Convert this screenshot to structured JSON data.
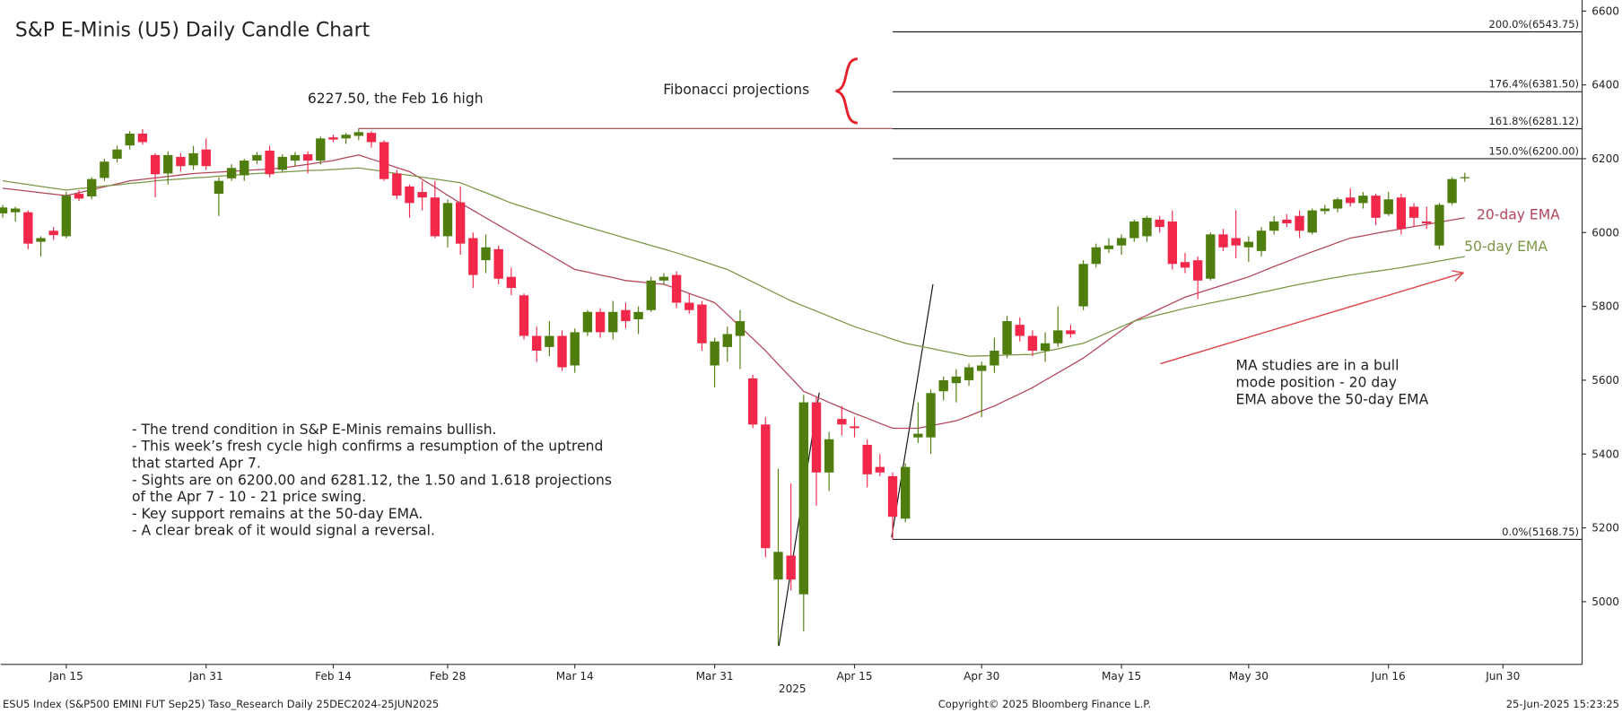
{
  "chart_data": {
    "type": "candlestick",
    "title": "S&P E-Minis (U5) Daily Candle Chart",
    "categories": [
      null,
      null,
      null,
      null,
      null,
      "Jan 15",
      null,
      null,
      null,
      null,
      null,
      null,
      null,
      null,
      null,
      null,
      "Jan 31",
      null,
      null,
      null,
      null,
      null,
      null,
      null,
      null,
      null,
      "Feb 14",
      null,
      null,
      null,
      null,
      null,
      null,
      null,
      null,
      "Feb 28",
      null,
      null,
      null,
      null,
      null,
      null,
      null,
      null,
      null,
      "Mar 14",
      null,
      null,
      null,
      null,
      null,
      null,
      null,
      null,
      null,
      null,
      "Mar 31",
      null,
      null,
      null,
      null,
      null,
      null,
      null,
      null,
      null,
      null,
      "Apr 15",
      null,
      null,
      null,
      null,
      null,
      null,
      null,
      null,
      null,
      "Apr 30",
      null,
      null,
      null,
      null,
      null,
      null,
      null,
      null,
      null,
      null,
      "May 15",
      null,
      null,
      null,
      null,
      null,
      null,
      null,
      null,
      null,
      "May 30",
      null,
      null,
      null,
      null,
      null,
      null,
      null,
      null,
      null,
      null,
      "Jun 16",
      null,
      null,
      null,
      null,
      null,
      null,
      null,
      null,
      "Jun 30"
    ],
    "open": [
      6052,
      6055,
      6055,
      5975,
      6005,
      5990,
      6105,
      6098,
      6148,
      6200,
      6236,
      6268,
      6210,
      6160,
      6205,
      6182,
      6225,
      6105,
      6147,
      6155,
      6195,
      6222,
      6170,
      6195,
      6212,
      6195,
      6258,
      6255,
      6262,
      6270,
      6245,
      6160,
      6125,
      6110,
      6095,
      5990,
      6082,
      5985,
      5925,
      5955,
      5880,
      5830,
      5720,
      5690,
      5720,
      5640,
      5730,
      5785,
      5730,
      5790,
      5765,
      5790,
      5870,
      5885,
      5810,
      5805,
      5640,
      5690,
      5720,
      5605,
      5480,
      5060,
      5125,
      5020,
      5540,
      5350,
      5495,
      5475,
      5425,
      5365,
      5340,
      5225,
      5445,
      5445,
      5570,
      5592,
      5600,
      5625,
      5640,
      5670,
      5750,
      5720,
      5680,
      5700,
      5735,
      5800,
      5915,
      5955,
      5965,
      5985,
      5990,
      6035,
      6030,
      5920,
      5925,
      5875,
      5995,
      5985,
      5960,
      5950,
      6005,
      6035,
      6045,
      6000,
      6058,
      6065,
      6095,
      6080,
      6100,
      6050,
      6095,
      6070,
      6030,
      5965,
      6080,
      6147,
      null,
      null,
      null
    ],
    "high": [
      6075,
      6070,
      6060,
      5990,
      6015,
      6110,
      6115,
      6150,
      6200,
      6235,
      6275,
      6280,
      6215,
      6220,
      6215,
      6235,
      6255,
      6150,
      6185,
      6200,
      6218,
      6235,
      6212,
      6218,
      6220,
      6260,
      6265,
      6270,
      6282,
      6275,
      6250,
      6170,
      6130,
      6140,
      6140,
      6090,
      6125,
      6000,
      5995,
      5965,
      5905,
      5835,
      5745,
      5760,
      5735,
      5740,
      5790,
      5795,
      5815,
      5810,
      5800,
      5880,
      5890,
      5895,
      5835,
      5815,
      5715,
      5745,
      5790,
      5615,
      5500,
      5360,
      5320,
      5560,
      5555,
      5460,
      5530,
      5500,
      5440,
      5400,
      5350,
      5375,
      5540,
      5575,
      5610,
      5630,
      5645,
      5650,
      5715,
      5775,
      5770,
      5735,
      5730,
      5800,
      5750,
      5925,
      5970,
      5985,
      5995,
      6035,
      6045,
      6045,
      6060,
      5945,
      5935,
      6000,
      6010,
      6060,
      5990,
      6015,
      6045,
      6050,
      6060,
      6065,
      6075,
      6095,
      6120,
      6110,
      6105,
      6110,
      6105,
      6080,
      6070,
      6080,
      6150,
      6162,
      null,
      null,
      null
    ],
    "low": [
      6040,
      6030,
      5955,
      5935,
      5980,
      5985,
      6085,
      6090,
      6140,
      6190,
      6225,
      6238,
      6095,
      6130,
      6165,
      6170,
      6170,
      6045,
      6140,
      6140,
      6185,
      6150,
      6165,
      6180,
      6160,
      6185,
      6245,
      6240,
      6250,
      6230,
      6140,
      6090,
      6040,
      6060,
      5985,
      5960,
      5940,
      5850,
      5890,
      5860,
      5830,
      5710,
      5650,
      5665,
      5625,
      5620,
      5720,
      5715,
      5710,
      5740,
      5725,
      5785,
      5860,
      5795,
      5780,
      5680,
      5580,
      5650,
      5630,
      5470,
      5120,
      4880,
      5030,
      4920,
      5260,
      5300,
      5450,
      5445,
      5310,
      5340,
      5169,
      5215,
      5430,
      5400,
      5545,
      5540,
      5585,
      5500,
      5620,
      5660,
      5705,
      5665,
      5650,
      5690,
      5715,
      5790,
      5905,
      5945,
      5940,
      5975,
      5975,
      6000,
      5900,
      5890,
      5820,
      5870,
      5950,
      5930,
      5920,
      5935,
      5995,
      6015,
      5985,
      5995,
      6050,
      6055,
      6070,
      6065,
      6020,
      6045,
      5995,
      6015,
      6010,
      5955,
      6075,
      6138,
      null,
      null,
      null
    ],
    "close": [
      6068,
      6065,
      5970,
      5985,
      5993,
      6100,
      6092,
      6145,
      6192,
      6225,
      6268,
      6245,
      6158,
      6210,
      6180,
      6215,
      6180,
      6140,
      6175,
      6195,
      6210,
      6158,
      6205,
      6210,
      6195,
      6255,
      6252,
      6265,
      6272,
      6245,
      6145,
      6100,
      6080,
      6095,
      5990,
      6080,
      5970,
      5885,
      5960,
      5875,
      5850,
      5720,
      5680,
      5720,
      5635,
      5730,
      5785,
      5730,
      5785,
      5760,
      5785,
      5870,
      5880,
      5810,
      5790,
      5700,
      5705,
      5725,
      5760,
      5480,
      5145,
      5135,
      5060,
      5540,
      5350,
      5440,
      5480,
      5470,
      5345,
      5350,
      5230,
      5365,
      5455,
      5565,
      5600,
      5610,
      5635,
      5640,
      5680,
      5760,
      5720,
      5680,
      5700,
      5735,
      5725,
      5915,
      5960,
      5965,
      5985,
      6030,
      6040,
      6015,
      5915,
      5905,
      5870,
      5995,
      5960,
      5965,
      5975,
      6005,
      6030,
      6025,
      6005,
      6060,
      6065,
      6090,
      6080,
      6100,
      6040,
      6090,
      6010,
      6040,
      6025,
      6075,
      6145,
      6150,
      null,
      null,
      null
    ],
    "up_color": "#4f7d0e",
    "down_color": "#f2284a",
    "series": [
      {
        "name": "20-day EMA",
        "color": "#b2465a",
        "values": [
          6120,
          6116,
          6112,
          6108,
          6104,
          6100,
          6108,
          6116,
          6124,
          6132,
          6140,
          6144,
          6148,
          6152,
          6156,
          6160,
          6162,
          6164,
          6166,
          6168,
          6170,
          6172,
          6175,
          6180,
          6185,
          6190,
          6195,
          6203,
          6210,
          6199,
          6188,
          6176,
          6165,
          6144,
          6123,
          6101,
          6080,
          6060,
          6040,
          6020,
          6000,
          5980,
          5960,
          5940,
          5920,
          5900,
          5893,
          5885,
          5878,
          5870,
          5867,
          5863,
          5860,
          5848,
          5835,
          5823,
          5810,
          5778,
          5745,
          5713,
          5680,
          5643,
          5607,
          5570,
          5555,
          5540,
          5525,
          5510,
          5497,
          5483,
          5470,
          5470,
          5470,
          5477,
          5483,
          5490,
          5503,
          5517,
          5530,
          5547,
          5563,
          5580,
          5600,
          5620,
          5640,
          5660,
          5685,
          5710,
          5735,
          5760,
          5776,
          5793,
          5809,
          5825,
          5836,
          5847,
          5858,
          5869,
          5880,
          5894,
          5908,
          5921,
          5935,
          5948,
          5960,
          5973,
          5985,
          5991,
          5998,
          6004,
          6010,
          6016,
          6022,
          6028,
          6034,
          6040,
          null,
          null,
          null
        ]
      },
      {
        "name": "50-day EMA",
        "color": "#7a9646",
        "values": [
          6140,
          6135,
          6130,
          6125,
          6120,
          6115,
          6119,
          6122,
          6126,
          6129,
          6133,
          6136,
          6140,
          6143,
          6145,
          6148,
          6150,
          6153,
          6155,
          6158,
          6160,
          6162,
          6164,
          6166,
          6168,
          6169,
          6171,
          6173,
          6175,
          6170,
          6165,
          6160,
          6155,
          6150,
          6145,
          6140,
          6135,
          6121,
          6108,
          6094,
          6080,
          6069,
          6058,
          6047,
          6036,
          6025,
          6015,
          6005,
          5995,
          5985,
          5975,
          5965,
          5955,
          5945,
          5934,
          5923,
          5911,
          5900,
          5883,
          5866,
          5849,
          5832,
          5815,
          5801,
          5787,
          5773,
          5759,
          5745,
          5734,
          5723,
          5711,
          5700,
          5693,
          5686,
          5679,
          5672,
          5665,
          5666,
          5667,
          5668,
          5669,
          5670,
          5678,
          5685,
          5693,
          5700,
          5715,
          5730,
          5745,
          5760,
          5769,
          5778,
          5786,
          5795,
          5802,
          5809,
          5816,
          5823,
          5830,
          5838,
          5845,
          5853,
          5860,
          5866,
          5873,
          5879,
          5885,
          5890,
          5895,
          5900,
          5905,
          5911,
          5917,
          5923,
          5929,
          5935,
          null,
          null,
          null
        ]
      }
    ],
    "ylim": [
      4830,
      6630
    ],
    "yticks": [
      5000,
      5200,
      5400,
      5600,
      5800,
      6000,
      6200,
      6400,
      6600
    ],
    "x_sublabel": "2025",
    "fib_levels": [
      {
        "label": "200.0%(6543.75)",
        "value": 6543.75
      },
      {
        "label": "176.4%(6381.50)",
        "value": 6381.5
      },
      {
        "label": "161.8%(6281.12)",
        "value": 6281.12
      },
      {
        "label": "150.0%(6200.00)",
        "value": 6200
      },
      {
        "label": "0.0%(5168.75)",
        "value": 5168.75
      }
    ],
    "annotations": {
      "feb_high": "6227.50, the Feb 16 high",
      "fib": "Fibonacci projections",
      "ma_note": [
        "MA studies are in a bull",
        "mode position - 20 day",
        "EMA above the 50-day EMA"
      ],
      "commentary": [
        "- The trend condition in S&P E-Minis remains bullish.",
        "- This week’s fresh cycle high confirms a resumption of the uptrend",
        "that started Apr 7.",
        "- Sights are on 6200.00 and 6281.12, the 1.50 and 1.618 projections",
        "of the Apr 7 - 10 - 21 price swing.",
        "- Key support remains at the 50-day EMA.",
        "- A clear break of it would signal a reversal."
      ]
    }
  },
  "footer": {
    "left": "ESU5 Index (S&P500 EMINI FUT  Sep25) Taso_Research  Daily 25DEC2024-25JUN2025",
    "center": "Copyright© 2025 Bloomberg Finance L.P.",
    "right": "25-Jun-2025 15:23:25"
  }
}
